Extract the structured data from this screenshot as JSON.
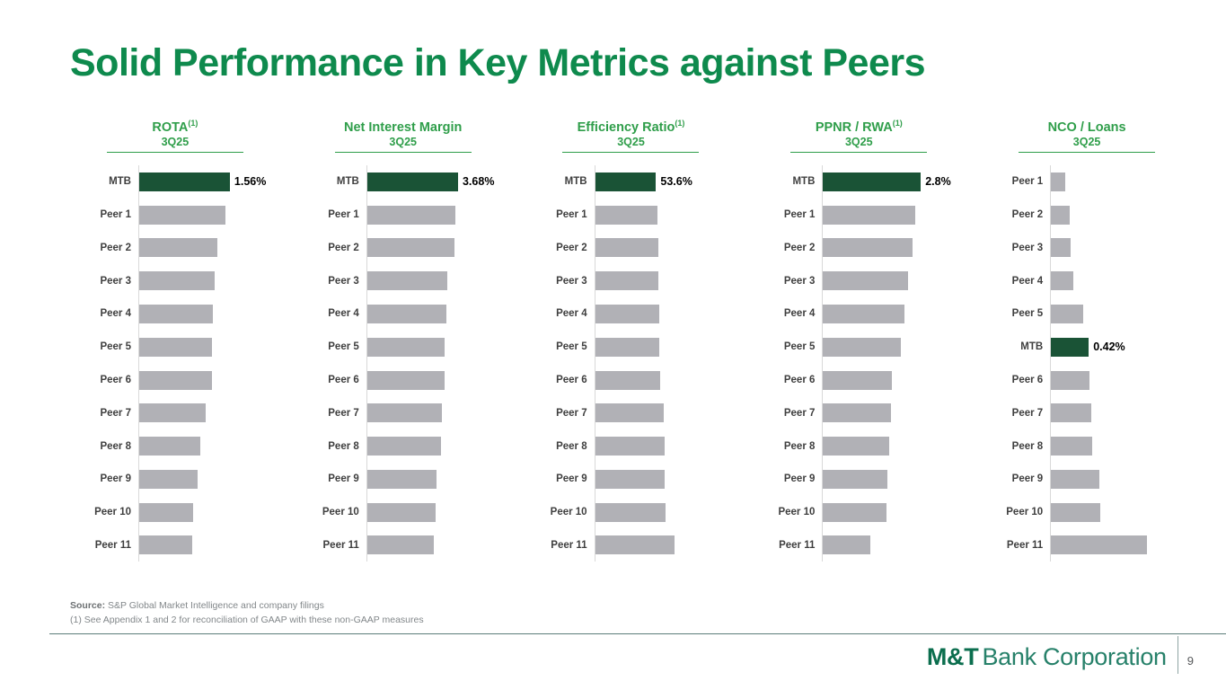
{
  "slide": {
    "title": "Solid Performance in Key Metrics against Peers",
    "page_number": "9"
  },
  "footer": {
    "source_label": "Source:",
    "source_text": " S&P Global Market Intelligence and company filings",
    "footnote": "(1) See Appendix 1 and 2 for reconciliation of GAAP with these non-GAAP measures"
  },
  "logo": {
    "bold": "M&T",
    "rest": "Bank Corporation"
  },
  "colors": {
    "title_green": "#0e8a4d",
    "header_green": "#2f9e4a",
    "mtb_bar_green": "#1a5336",
    "peer_bar_gray": "#b1b1b6",
    "logo_green": "#0b6e4e"
  },
  "chart_data": [
    {
      "type": "bar",
      "orientation": "horizontal",
      "title": "ROTA",
      "sup": "(1)",
      "subtitle": "3Q25",
      "xlim": [
        0,
        1.7
      ],
      "legend": "none",
      "grid": false,
      "rows": [
        {
          "label": "MTB",
          "value": 1.56,
          "highlight": true,
          "value_label": "1.56%"
        },
        {
          "label": "Peer 1",
          "value": 1.48
        },
        {
          "label": "Peer 2",
          "value": 1.35
        },
        {
          "label": "Peer 3",
          "value": 1.3
        },
        {
          "label": "Peer 4",
          "value": 1.27
        },
        {
          "label": "Peer 5",
          "value": 1.25
        },
        {
          "label": "Peer 6",
          "value": 1.25
        },
        {
          "label": "Peer 7",
          "value": 1.14
        },
        {
          "label": "Peer 8",
          "value": 1.05
        },
        {
          "label": "Peer 9",
          "value": 1.0
        },
        {
          "label": "Peer 10",
          "value": 0.93
        },
        {
          "label": "Peer 11",
          "value": 0.91
        }
      ]
    },
    {
      "type": "bar",
      "orientation": "horizontal",
      "title": "Net Interest Margin",
      "sup": "",
      "subtitle": "3Q25",
      "xlim": [
        0,
        4.0
      ],
      "legend": "none",
      "grid": false,
      "rows": [
        {
          "label": "MTB",
          "value": 3.68,
          "highlight": true,
          "value_label": "3.68%"
        },
        {
          "label": "Peer 1",
          "value": 3.57
        },
        {
          "label": "Peer 2",
          "value": 3.54
        },
        {
          "label": "Peer 3",
          "value": 3.25
        },
        {
          "label": "Peer 4",
          "value": 3.21
        },
        {
          "label": "Peer 5",
          "value": 3.15
        },
        {
          "label": "Peer 6",
          "value": 3.14
        },
        {
          "label": "Peer 7",
          "value": 3.01
        },
        {
          "label": "Peer 8",
          "value": 3.0
        },
        {
          "label": "Peer 9",
          "value": 2.82
        },
        {
          "label": "Peer 10",
          "value": 2.78
        },
        {
          "label": "Peer 11",
          "value": 2.71
        }
      ]
    },
    {
      "type": "bar",
      "orientation": "horizontal",
      "title": "Efficiency Ratio",
      "sup": "(1)",
      "subtitle": "3Q25",
      "xlim": [
        0,
        87
      ],
      "legend": "none",
      "grid": false,
      "rows": [
        {
          "label": "MTB",
          "value": 53.6,
          "highlight": true,
          "value_label": "53.6%"
        },
        {
          "label": "Peer 1",
          "value": 55.2
        },
        {
          "label": "Peer 2",
          "value": 55.4
        },
        {
          "label": "Peer 3",
          "value": 56.0
        },
        {
          "label": "Peer 4",
          "value": 56.7
        },
        {
          "label": "Peer 5",
          "value": 56.9
        },
        {
          "label": "Peer 6",
          "value": 57.5
        },
        {
          "label": "Peer 7",
          "value": 60.7
        },
        {
          "label": "Peer 8",
          "value": 61.5
        },
        {
          "label": "Peer 9",
          "value": 61.6
        },
        {
          "label": "Peer 10",
          "value": 62.2
        },
        {
          "label": "Peer 11",
          "value": 70.1
        }
      ]
    },
    {
      "type": "bar",
      "orientation": "horizontal",
      "title": "PPNR / RWA",
      "sup": "(1)",
      "subtitle": "3Q25",
      "xlim": [
        0,
        2.83
      ],
      "legend": "none",
      "grid": false,
      "rows": [
        {
          "label": "MTB",
          "value": 2.8,
          "highlight": true,
          "value_label": "2.8%"
        },
        {
          "label": "Peer 1",
          "value": 2.65
        },
        {
          "label": "Peer 2",
          "value": 2.57
        },
        {
          "label": "Peer 3",
          "value": 2.44
        },
        {
          "label": "Peer 4",
          "value": 2.34
        },
        {
          "label": "Peer 5",
          "value": 2.24
        },
        {
          "label": "Peer 6",
          "value": 1.98
        },
        {
          "label": "Peer 7",
          "value": 1.95
        },
        {
          "label": "Peer 8",
          "value": 1.9
        },
        {
          "label": "Peer 9",
          "value": 1.85
        },
        {
          "label": "Peer 10",
          "value": 1.82
        },
        {
          "label": "Peer 11",
          "value": 1.36
        }
      ]
    },
    {
      "type": "bar",
      "orientation": "horizontal",
      "title": "NCO / Loans",
      "sup": "",
      "subtitle": "3Q25",
      "xlim": [
        0,
        1.1
      ],
      "legend": "none",
      "grid": false,
      "rows": [
        {
          "label": "Peer 1",
          "value": 0.16
        },
        {
          "label": "Peer 2",
          "value": 0.21
        },
        {
          "label": "Peer 3",
          "value": 0.22
        },
        {
          "label": "Peer 4",
          "value": 0.25
        },
        {
          "label": "Peer 5",
          "value": 0.36
        },
        {
          "label": "MTB",
          "value": 0.42,
          "highlight": true,
          "value_label": "0.42%"
        },
        {
          "label": "Peer 6",
          "value": 0.43
        },
        {
          "label": "Peer 7",
          "value": 0.45
        },
        {
          "label": "Peer 8",
          "value": 0.46
        },
        {
          "label": "Peer 9",
          "value": 0.54
        },
        {
          "label": "Peer 10",
          "value": 0.55
        },
        {
          "label": "Peer 11",
          "value": 1.07
        }
      ]
    }
  ]
}
